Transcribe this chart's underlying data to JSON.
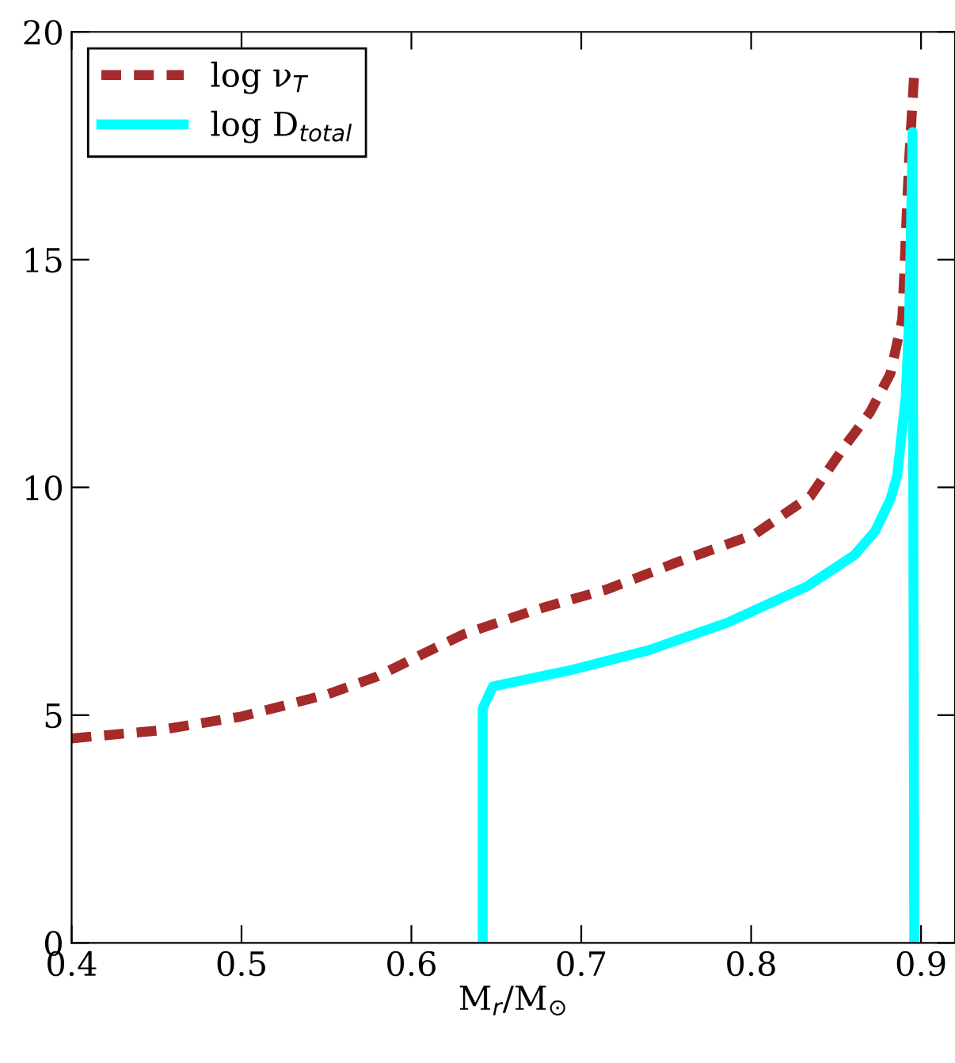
{
  "chart_data": {
    "type": "line",
    "xlabel": "M$_{r}$/M$_{⊙}$",
    "xlim": [
      0.4,
      0.92
    ],
    "xticks": [
      0.4,
      0.5,
      0.6,
      0.7,
      0.8,
      0.9
    ],
    "ylim": [
      0,
      20
    ],
    "yticks": [
      0,
      5,
      10,
      15,
      20
    ],
    "grid": false,
    "legend": "top left",
    "series": [
      {
        "name": "log ν$_{T}$",
        "color": "#a52a2a",
        "line_style": "dashed",
        "x": [
          0.4,
          0.45,
          0.5,
          0.55,
          0.58,
          0.606,
          0.631,
          0.672,
          0.715,
          0.756,
          0.802,
          0.835,
          0.854,
          0.87,
          0.882,
          0.889,
          0.891,
          0.893,
          0.896
        ],
        "values": [
          4.49,
          4.66,
          4.97,
          5.45,
          5.85,
          6.33,
          6.78,
          7.3,
          7.76,
          8.35,
          8.97,
          9.81,
          10.85,
          11.65,
          12.5,
          13.7,
          15.5,
          17.2,
          19.1
        ]
      },
      {
        "name": "log D$_{total}$",
        "color": "#00ffff",
        "line_style": "solid",
        "x": [
          0.642,
          0.642,
          0.648,
          0.693,
          0.74,
          0.786,
          0.833,
          0.861,
          0.873,
          0.882,
          0.886,
          0.891,
          0.893,
          0.894,
          0.895,
          0.896
        ],
        "values": [
          0,
          5.15,
          5.63,
          5.98,
          6.43,
          7.03,
          7.83,
          8.52,
          9.04,
          9.74,
          10.26,
          12.0,
          13.7,
          15.5,
          17.8,
          0
        ]
      }
    ]
  }
}
